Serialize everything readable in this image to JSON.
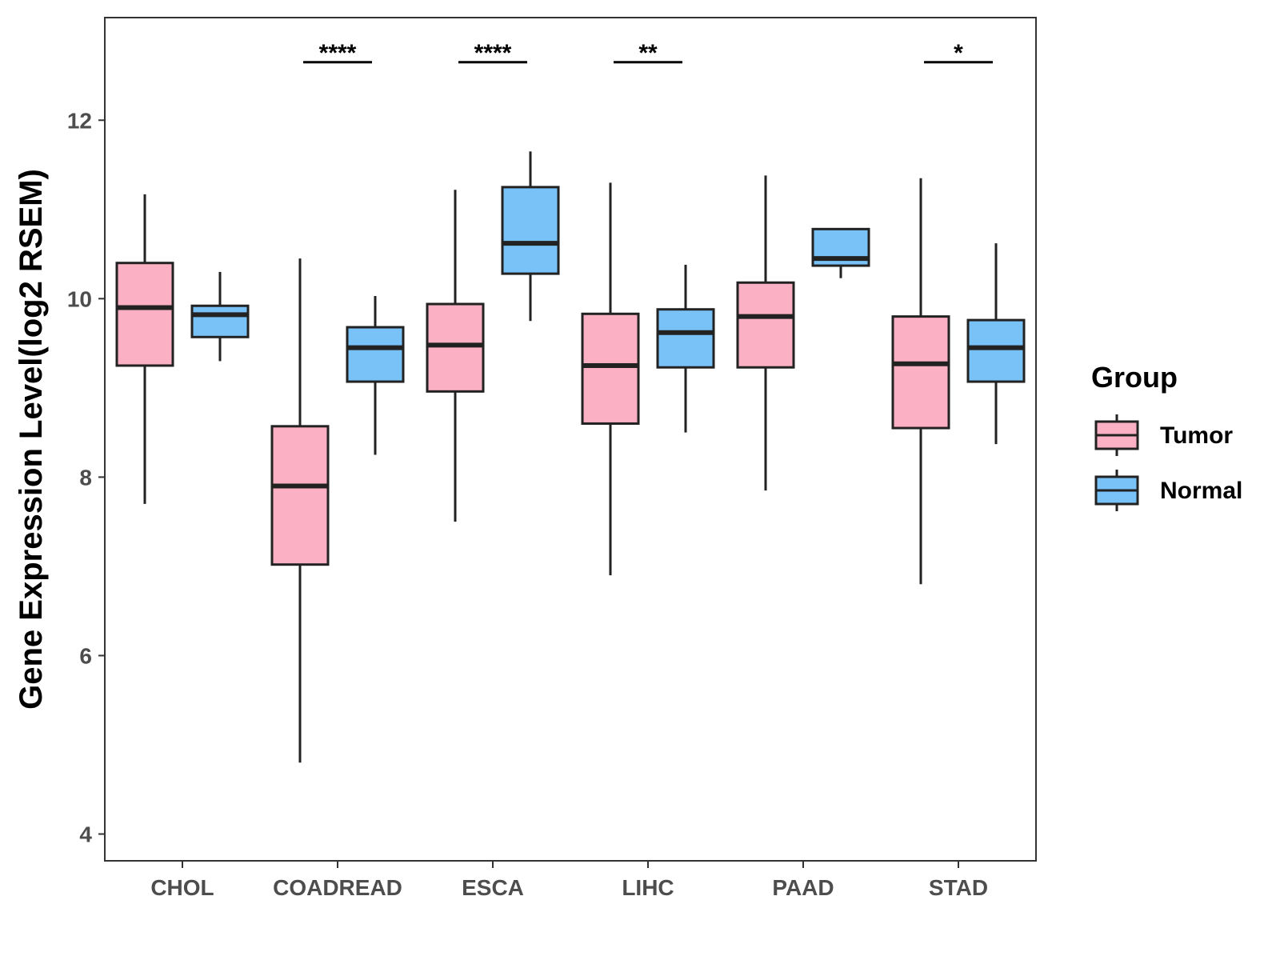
{
  "chart_data": {
    "type": "boxplot",
    "title": "",
    "xlabel": "",
    "ylabel": "Gene Expression Level(log2 RSEM)",
    "ylim": [
      3.7,
      13.15
    ],
    "yticks": [
      "4",
      "6",
      "8",
      "10",
      "12"
    ],
    "grid": false,
    "categories": [
      "CHOL",
      "COADREAD",
      "ESCA",
      "LIHC",
      "PAAD",
      "STAD"
    ],
    "legend": {
      "title": "Group",
      "position": "right",
      "entries": [
        "Tumor",
        "Normal"
      ]
    },
    "colors": {
      "Tumor": "#fbb1c3",
      "Normal": "#79c2f8",
      "outline": "#222222"
    },
    "series": [
      {
        "name": "Tumor",
        "boxes": [
          {
            "category": "CHOL",
            "min": 7.7,
            "q1": 9.25,
            "median": 9.9,
            "q3": 10.4,
            "max": 11.17
          },
          {
            "category": "COADREAD",
            "min": 4.8,
            "q1": 7.02,
            "median": 7.9,
            "q3": 8.57,
            "max": 10.45
          },
          {
            "category": "ESCA",
            "min": 7.5,
            "q1": 8.96,
            "median": 9.48,
            "q3": 9.94,
            "max": 11.22
          },
          {
            "category": "LIHC",
            "min": 6.9,
            "q1": 8.6,
            "median": 9.25,
            "q3": 9.83,
            "max": 11.3
          },
          {
            "category": "PAAD",
            "min": 7.85,
            "q1": 9.23,
            "median": 9.8,
            "q3": 10.18,
            "max": 11.38
          },
          {
            "category": "STAD",
            "min": 6.8,
            "q1": 8.55,
            "median": 9.27,
            "q3": 9.8,
            "max": 11.35
          }
        ]
      },
      {
        "name": "Normal",
        "boxes": [
          {
            "category": "CHOL",
            "min": 9.3,
            "q1": 9.57,
            "median": 9.82,
            "q3": 9.92,
            "max": 10.3
          },
          {
            "category": "COADREAD",
            "min": 8.25,
            "q1": 9.07,
            "median": 9.45,
            "q3": 9.68,
            "max": 10.03
          },
          {
            "category": "ESCA",
            "min": 9.75,
            "q1": 10.28,
            "median": 10.62,
            "q3": 11.25,
            "max": 11.65
          },
          {
            "category": "LIHC",
            "min": 8.5,
            "q1": 9.23,
            "median": 9.62,
            "q3": 9.88,
            "max": 10.38
          },
          {
            "category": "PAAD",
            "min": 10.23,
            "q1": 10.37,
            "median": 10.45,
            "q3": 10.78,
            "max": 10.78
          },
          {
            "category": "STAD",
            "min": 8.37,
            "q1": 9.07,
            "median": 9.45,
            "q3": 9.76,
            "max": 10.62
          }
        ]
      }
    ],
    "significance": [
      {
        "category": "COADREAD",
        "label": "****"
      },
      {
        "category": "ESCA",
        "label": "****"
      },
      {
        "category": "LIHC",
        "label": "**"
      },
      {
        "category": "STAD",
        "label": "*"
      }
    ],
    "significance_y": 12.65
  }
}
